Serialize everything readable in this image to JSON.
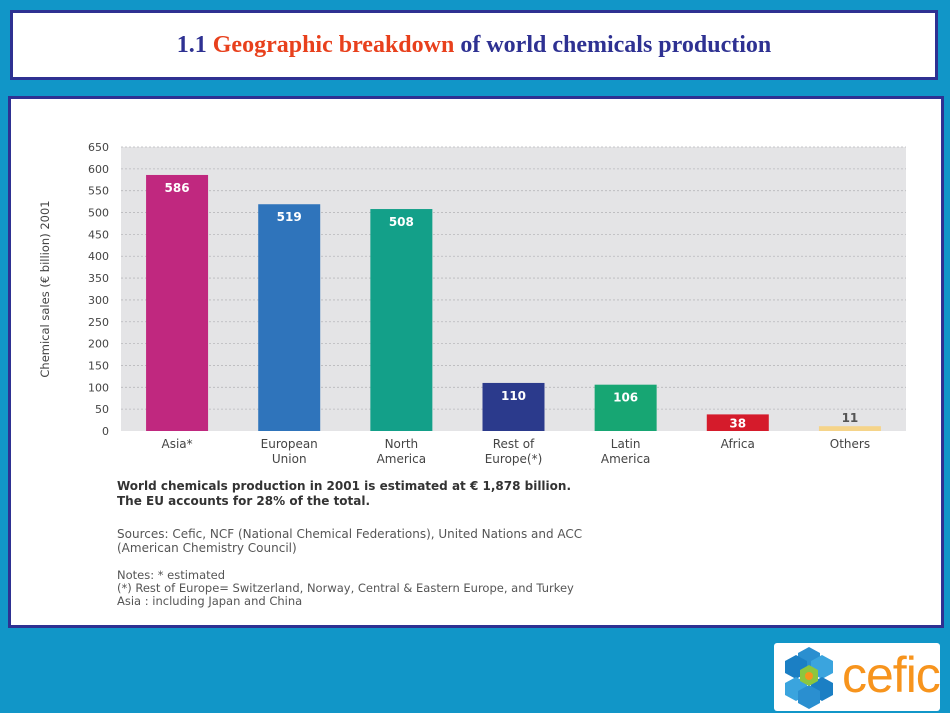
{
  "slide": {
    "title_prefix": "1.1",
    "title_highlight": "Geographic breakdown",
    "title_suffix": "of world chemicals production"
  },
  "chart_data": {
    "type": "bar",
    "categories": [
      [
        "Asia*"
      ],
      [
        "European",
        "Union"
      ],
      [
        "North",
        "America"
      ],
      [
        "Rest of",
        "Europe(*)"
      ],
      [
        "Latin",
        "America"
      ],
      [
        "Africa"
      ],
      [
        "Others"
      ]
    ],
    "values": [
      586,
      519,
      508,
      110,
      106,
      38,
      11
    ],
    "data_labels": [
      "586",
      "519",
      "508",
      "110",
      "106",
      "38",
      "11"
    ],
    "colors": [
      "#c0287f",
      "#2f74bb",
      "#13a089",
      "#2b3a8c",
      "#17a673",
      "#d51b2b",
      "#f5d48a"
    ],
    "ylabel": "Chemical sales (€ billion) 2001",
    "ylim": [
      0,
      650
    ],
    "yticks": [
      0,
      50,
      100,
      150,
      200,
      250,
      300,
      350,
      400,
      450,
      500,
      550,
      600,
      650
    ],
    "grid": true,
    "plot_background": "#e4e4e6"
  },
  "summary": [
    "World chemicals production in 2001 is estimated at € 1,878 billion.",
    "The EU accounts for 28% of the total."
  ],
  "sources": [
    "Sources: Cefic, NCF (National Chemical Federations), United Nations and ACC",
    "(American Chemistry Council)"
  ],
  "notes": [
    "Notes: * estimated",
    "(*) Rest of Europe= Switzerland, Norway, Central & Eastern Europe, and Turkey",
    "Asia : including Japan and China"
  ],
  "logo": {
    "text": "cefic"
  }
}
